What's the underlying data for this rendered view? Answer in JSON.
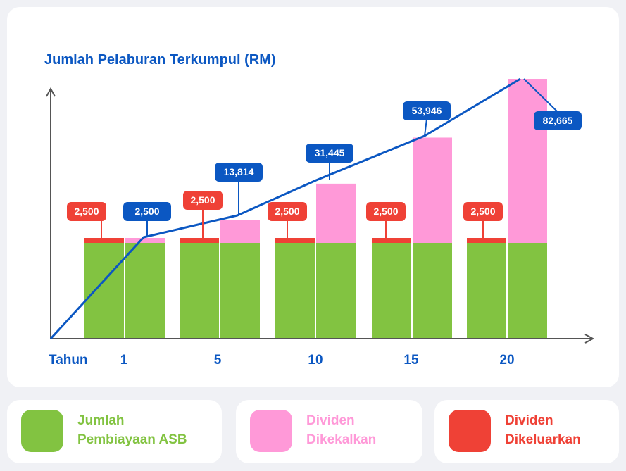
{
  "chart_data": {
    "type": "bar",
    "title": "Jumlah Pelaburan Terkumpul (RM)",
    "xlabel": "Tahun",
    "categories": [
      "1",
      "5",
      "10",
      "15",
      "20"
    ],
    "series": [
      {
        "name": "Jumlah Pembiayaan ASB",
        "values": [
          2500,
          2500,
          2500,
          2500,
          2500
        ]
      },
      {
        "name": "Dividen Dikekalkan",
        "values": [
          2500,
          13814,
          31445,
          53946,
          82665
        ]
      },
      {
        "name": "Dividen Dikeluarkan",
        "values": [
          2500,
          2500,
          2500,
          2500,
          2500
        ]
      }
    ],
    "red_labels": [
      "2,500",
      "2,500",
      "2,500",
      "2,500",
      "2,500"
    ],
    "blue_labels": [
      "2,500",
      "13,814",
      "31,445",
      "53,946",
      "82,665"
    ],
    "line_values": [
      2500,
      13814,
      31445,
      53946,
      82665
    ],
    "colors": {
      "green": "#82c341",
      "pink": "#ff99d8",
      "red": "#ef4136",
      "blue": "#0b57c2",
      "axis": "#555555"
    }
  },
  "legend": [
    {
      "line1": "Jumlah",
      "line2": "Pembiayaan ASB",
      "color": "#82c341"
    },
    {
      "line1": "Dividen",
      "line2": "Dikekalkan",
      "color": "#ff99d8"
    },
    {
      "line1": "Dividen",
      "line2": "Dikeluarkan",
      "color": "#ef4136"
    }
  ]
}
